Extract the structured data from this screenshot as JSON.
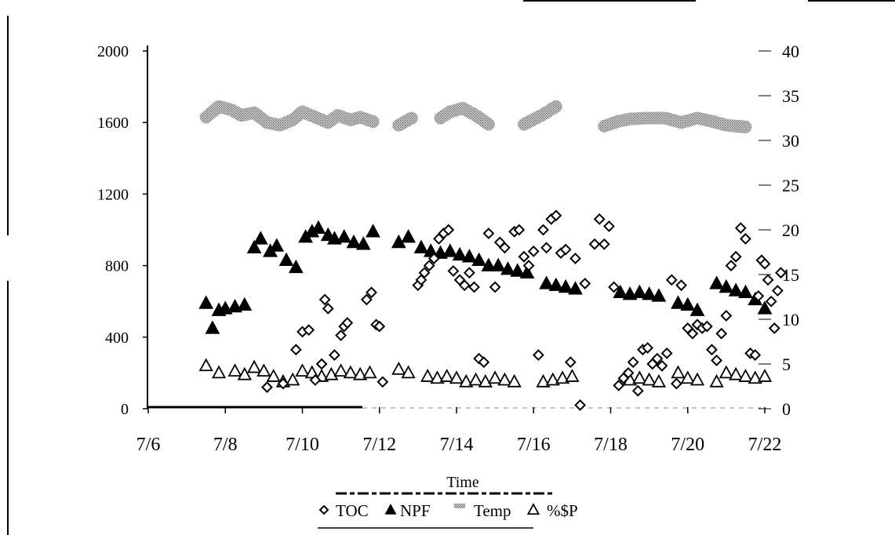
{
  "chart_data": {
    "type": "scatter",
    "xlabel": "Time",
    "ylabel": "",
    "ylabel_right": "",
    "xlim": [
      "7/6",
      "7/22"
    ],
    "x_ticks": [
      "7/6",
      "7/8",
      "7/10",
      "7/12",
      "7/14",
      "7/16",
      "7/18",
      "7/20",
      "7/22"
    ],
    "ylim_left": [
      0,
      2000
    ],
    "y_ticks_left": [
      0,
      400,
      800,
      1200,
      1600,
      2000
    ],
    "ylim_right": [
      0,
      40
    ],
    "y_ticks_right": [
      0,
      5,
      10,
      15,
      20,
      25,
      30,
      35,
      40
    ],
    "legend_position": "bottom",
    "grid": false,
    "colors": {
      "axis": "#000000",
      "temp": "#9a9a9a"
    },
    "series": [
      {
        "name": "TOC",
        "axis": "left",
        "marker": "open-diamond",
        "points": [
          [
            "7/9 02:00",
            120
          ],
          [
            "7/9 12:00",
            140
          ],
          [
            "7/9 20:00",
            330
          ],
          [
            "7/10 00:00",
            430
          ],
          [
            "7/10 04:00",
            440
          ],
          [
            "7/10 08:00",
            160
          ],
          [
            "7/10 12:00",
            250
          ],
          [
            "7/10 14:00",
            610
          ],
          [
            "7/10 16:00",
            560
          ],
          [
            "7/10 20:00",
            300
          ],
          [
            "7/11 00:00",
            410
          ],
          [
            "7/11 02:00",
            460
          ],
          [
            "7/11 04:00",
            480
          ],
          [
            "7/11 16:00",
            610
          ],
          [
            "7/11 19:00",
            650
          ],
          [
            "7/11 22:00",
            470
          ],
          [
            "7/12 00:00",
            460
          ],
          [
            "7/12 02:00",
            150
          ],
          [
            "7/13 00:00",
            690
          ],
          [
            "7/13 02:00",
            720
          ],
          [
            "7/13 04:00",
            760
          ],
          [
            "7/13 07:00",
            800
          ],
          [
            "7/13 10:00",
            840
          ],
          [
            "7/13 13:00",
            950
          ],
          [
            "7/13 16:00",
            980
          ],
          [
            "7/13 19:00",
            1000
          ],
          [
            "7/13 22:00",
            770
          ],
          [
            "7/14 02:00",
            720
          ],
          [
            "7/14 05:00",
            690
          ],
          [
            "7/14 08:00",
            760
          ],
          [
            "7/14 11:00",
            680
          ],
          [
            "7/14 14:00",
            280
          ],
          [
            "7/14 17:00",
            260
          ],
          [
            "7/14 20:00",
            980
          ],
          [
            "7/15 00:00",
            680
          ],
          [
            "7/15 03:00",
            930
          ],
          [
            "7/15 06:00",
            900
          ],
          [
            "7/15 12:00",
            990
          ],
          [
            "7/15 15:00",
            1000
          ],
          [
            "7/15 18:00",
            850
          ],
          [
            "7/15 21:00",
            800
          ],
          [
            "7/16 00:00",
            880
          ],
          [
            "7/16 03:00",
            300
          ],
          [
            "7/16 06:00",
            1000
          ],
          [
            "7/16 08:00",
            900
          ],
          [
            "7/16 11:00",
            1060
          ],
          [
            "7/16 14:00",
            1080
          ],
          [
            "7/16 17:00",
            870
          ],
          [
            "7/16 20:00",
            890
          ],
          [
            "7/16 23:00",
            260
          ],
          [
            "7/17 02:00",
            840
          ],
          [
            "7/17 05:00",
            20
          ],
          [
            "7/17 08:00",
            700
          ],
          [
            "7/17 14:00",
            920
          ],
          [
            "7/17 17:00",
            1060
          ],
          [
            "7/17 20:00",
            920
          ],
          [
            "7/17 23:00",
            1020
          ],
          [
            "7/18 02:00",
            680
          ],
          [
            "7/18 05:00",
            130
          ],
          [
            "7/18 08:00",
            170
          ],
          [
            "7/18 11:00",
            200
          ],
          [
            "7/18 14:00",
            260
          ],
          [
            "7/18 17:00",
            100
          ],
          [
            "7/18 20:00",
            330
          ],
          [
            "7/18 23:00",
            340
          ],
          [
            "7/19 02:00",
            250
          ],
          [
            "7/19 05:00",
            280
          ],
          [
            "7/19 08:00",
            240
          ],
          [
            "7/19 11:00",
            310
          ],
          [
            "7/19 14:00",
            720
          ],
          [
            "7/19 17:00",
            140
          ],
          [
            "7/19 20:00",
            690
          ],
          [
            "7/20 00:00",
            450
          ],
          [
            "7/20 03:00",
            420
          ],
          [
            "7/20 06:00",
            470
          ],
          [
            "7/20 09:00",
            450
          ],
          [
            "7/20 12:00",
            460
          ],
          [
            "7/20 15:00",
            330
          ],
          [
            "7/20 18:00",
            270
          ],
          [
            "7/20 21:00",
            420
          ],
          [
            "7/21 00:00",
            520
          ],
          [
            "7/21 03:00",
            800
          ],
          [
            "7/21 06:00",
            850
          ],
          [
            "7/21 09:00",
            1010
          ],
          [
            "7/21 12:00",
            950
          ],
          [
            "7/21 15:00",
            310
          ],
          [
            "7/21 18:00",
            300
          ],
          [
            "7/21 20:00",
            630
          ],
          [
            "7/21 22:00",
            830
          ],
          [
            "7/22 00:00",
            810
          ],
          [
            "7/22 02:00",
            720
          ],
          [
            "7/22 04:00",
            600
          ],
          [
            "7/22 06:00",
            450
          ],
          [
            "7/22 08:00",
            660
          ],
          [
            "7/22 10:00",
            760
          ]
        ]
      },
      {
        "name": "NPF",
        "axis": "left",
        "marker": "filled-triangle",
        "points": [
          [
            "7/7 12:00",
            590
          ],
          [
            "7/7 16:00",
            450
          ],
          [
            "7/7 20:00",
            550
          ],
          [
            "7/8 00:00",
            560
          ],
          [
            "7/8 06:00",
            570
          ],
          [
            "7/8 12:00",
            580
          ],
          [
            "7/8 18:00",
            900
          ],
          [
            "7/8 22:00",
            950
          ],
          [
            "7/9 04:00",
            880
          ],
          [
            "7/9 08:00",
            910
          ],
          [
            "7/9 14:00",
            830
          ],
          [
            "7/9 20:00",
            790
          ],
          [
            "7/10 02:00",
            960
          ],
          [
            "7/10 06:00",
            990
          ],
          [
            "7/10 10:00",
            1010
          ],
          [
            "7/10 16:00",
            970
          ],
          [
            "7/10 20:00",
            950
          ],
          [
            "7/11 02:00",
            960
          ],
          [
            "7/11 08:00",
            930
          ],
          [
            "7/11 14:00",
            920
          ],
          [
            "7/11 20:00",
            990
          ],
          [
            "7/12 12:00",
            930
          ],
          [
            "7/12 18:00",
            960
          ],
          [
            "7/13 02:00",
            900
          ],
          [
            "7/13 08:00",
            880
          ],
          [
            "7/13 14:00",
            870
          ],
          [
            "7/13 20:00",
            880
          ],
          [
            "7/14 02:00",
            860
          ],
          [
            "7/14 08:00",
            850
          ],
          [
            "7/14 14:00",
            830
          ],
          [
            "7/14 20:00",
            800
          ],
          [
            "7/15 02:00",
            800
          ],
          [
            "7/15 08:00",
            780
          ],
          [
            "7/15 14:00",
            770
          ],
          [
            "7/15 20:00",
            760
          ],
          [
            "7/16 08:00",
            700
          ],
          [
            "7/16 14:00",
            690
          ],
          [
            "7/16 20:00",
            680
          ],
          [
            "7/17 02:00",
            670
          ],
          [
            "7/18 06:00",
            650
          ],
          [
            "7/18 12:00",
            640
          ],
          [
            "7/18 18:00",
            650
          ],
          [
            "7/19 00:00",
            640
          ],
          [
            "7/19 06:00",
            630
          ],
          [
            "7/19 18:00",
            590
          ],
          [
            "7/20 00:00",
            580
          ],
          [
            "7/20 06:00",
            550
          ],
          [
            "7/20 18:00",
            700
          ],
          [
            "7/21 00:00",
            680
          ],
          [
            "7/21 06:00",
            660
          ],
          [
            "7/21 12:00",
            650
          ],
          [
            "7/21 18:00",
            610
          ],
          [
            "7/22 00:00",
            560
          ]
        ]
      },
      {
        "name": "Temp",
        "axis": "right",
        "marker": "gray-hatched",
        "segments": [
          [
            [
              "7/7 12:00",
              32.6
            ],
            [
              "7/7 20:00",
              33.8
            ],
            [
              "7/8 04:00",
              33.4
            ],
            [
              "7/8 10:00",
              32.8
            ],
            [
              "7/8 18:00",
              33.1
            ],
            [
              "7/9 02:00",
              32.0
            ],
            [
              "7/9 10:00",
              31.7
            ],
            [
              "7/9 18:00",
              32.3
            ],
            [
              "7/10 00:00",
              33.2
            ],
            [
              "7/10 08:00",
              32.6
            ],
            [
              "7/10 16:00",
              32.0
            ],
            [
              "7/10 22:00",
              32.8
            ],
            [
              "7/11 06:00",
              32.3
            ],
            [
              "7/11 12:00",
              32.6
            ],
            [
              "7/11 20:00",
              32.1
            ]
          ],
          [
            [
              "7/12 12:00",
              31.7
            ],
            [
              "7/12 20:00",
              32.5
            ]
          ],
          [
            [
              "7/13 14:00",
              32.5
            ],
            [
              "7/13 20:00",
              33.2
            ],
            [
              "7/14 04:00",
              33.6
            ],
            [
              "7/14 12:00",
              32.8
            ],
            [
              "7/14 20:00",
              31.8
            ]
          ],
          [
            [
              "7/15 18:00",
              31.8
            ],
            [
              "7/16 06:00",
              32.9
            ],
            [
              "7/16 14:00",
              33.8
            ]
          ],
          [
            [
              "7/17 20:00",
              31.6
            ],
            [
              "7/18 04:00",
              32.1
            ],
            [
              "7/18 12:00",
              32.4
            ],
            [
              "7/19 00:00",
              32.5
            ],
            [
              "7/19 10:00",
              32.5
            ],
            [
              "7/19 20:00",
              32.0
            ],
            [
              "7/20 06:00",
              32.5
            ],
            [
              "7/20 16:00",
              32.1
            ],
            [
              "7/21 00:00",
              31.7
            ],
            [
              "7/21 12:00",
              31.5
            ]
          ]
        ]
      },
      {
        "name": "%$P",
        "axis": "left",
        "marker": "open-triangle",
        "points": [
          [
            "7/7 12:00",
            240
          ],
          [
            "7/7 20:00",
            200
          ],
          [
            "7/8 06:00",
            210
          ],
          [
            "7/8 12:00",
            190
          ],
          [
            "7/8 18:00",
            230
          ],
          [
            "7/9 00:00",
            210
          ],
          [
            "7/9 06:00",
            180
          ],
          [
            "7/9 12:00",
            150
          ],
          [
            "7/9 18:00",
            160
          ],
          [
            "7/10 00:00",
            210
          ],
          [
            "7/10 06:00",
            200
          ],
          [
            "7/10 12:00",
            180
          ],
          [
            "7/10 18:00",
            190
          ],
          [
            "7/11 00:00",
            210
          ],
          [
            "7/11 06:00",
            200
          ],
          [
            "7/11 12:00",
            190
          ],
          [
            "7/11 18:00",
            200
          ],
          [
            "7/12 12:00",
            220
          ],
          [
            "7/12 18:00",
            200
          ],
          [
            "7/13 06:00",
            180
          ],
          [
            "7/13 12:00",
            170
          ],
          [
            "7/13 18:00",
            180
          ],
          [
            "7/14 00:00",
            170
          ],
          [
            "7/14 06:00",
            150
          ],
          [
            "7/14 12:00",
            160
          ],
          [
            "7/14 18:00",
            150
          ],
          [
            "7/15 00:00",
            170
          ],
          [
            "7/15 06:00",
            160
          ],
          [
            "7/15 12:00",
            150
          ],
          [
            "7/16 06:00",
            150
          ],
          [
            "7/16 12:00",
            160
          ],
          [
            "7/16 18:00",
            170
          ],
          [
            "7/17 00:00",
            180
          ],
          [
            "7/18 12:00",
            160
          ],
          [
            "7/18 18:00",
            170
          ],
          [
            "7/19 00:00",
            160
          ],
          [
            "7/19 06:00",
            150
          ],
          [
            "7/19 18:00",
            200
          ],
          [
            "7/20 00:00",
            170
          ],
          [
            "7/20 06:00",
            160
          ],
          [
            "7/20 18:00",
            150
          ],
          [
            "7/21 00:00",
            200
          ],
          [
            "7/21 06:00",
            190
          ],
          [
            "7/21 12:00",
            180
          ],
          [
            "7/21 18:00",
            170
          ],
          [
            "7/22 00:00",
            180
          ]
        ]
      }
    ]
  }
}
